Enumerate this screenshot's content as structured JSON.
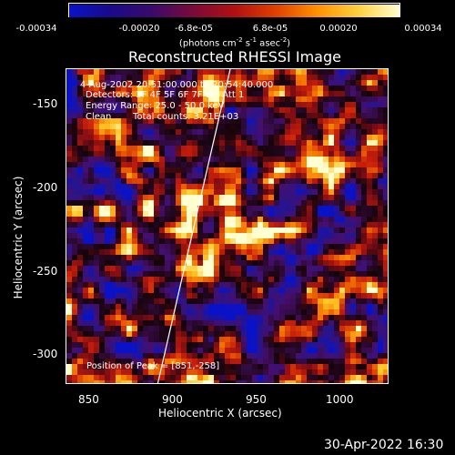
{
  "colorbar": {
    "ticks": [
      "-0.00034",
      "-0.00020",
      "-6.8e-05",
      "6.8e-05",
      "0.00020",
      "0.00034"
    ],
    "tick_values": [
      -0.00034,
      -0.0002,
      -6.8e-05,
      6.8e-05,
      0.0002,
      0.00034
    ],
    "range": [
      -0.00034,
      0.00034
    ],
    "units_label": "(photons cm",
    "units_parts": [
      "(photons cm",
      "-2",
      " s",
      "-1",
      " asec",
      "-2",
      ")"
    ],
    "colormap_colors": [
      "#0a12c8",
      "#1a0a8a",
      "#3a0a6a",
      "#7a0a3a",
      "#b01010",
      "#e04000",
      "#ff9000",
      "#ffd040",
      "#ffffd0"
    ]
  },
  "title": "Reconstructed RHESSI Image",
  "annotations": {
    "time": "4-Aug-2002 20:51:00.000 to 20:54:40.000",
    "detectors": "Detectors: 3F 4F 5F 6F 7F 8F, Att 1",
    "energy": "Energy Range: 25.0 - 50.0 keV",
    "clean_label": "Clean",
    "counts": "Total counts: 3.21E+03",
    "peak": "Position of Peak = [851,-258]"
  },
  "axes": {
    "xlabel": "Heliocentric X (arcsec)",
    "ylabel": "Heliocentric Y (arcsec)",
    "xlim": [
      840,
      1028
    ],
    "ylim": [
      -320,
      -130
    ],
    "xticks": [
      "850",
      "900",
      "950",
      "1000"
    ],
    "xtick_values": [
      850,
      900,
      950,
      1000
    ],
    "yticks": [
      "-150",
      "-200",
      "-250",
      "-300"
    ],
    "ytick_values": [
      -150,
      -200,
      -250,
      -300
    ]
  },
  "footer": "30-Apr-2022 16:30"
}
